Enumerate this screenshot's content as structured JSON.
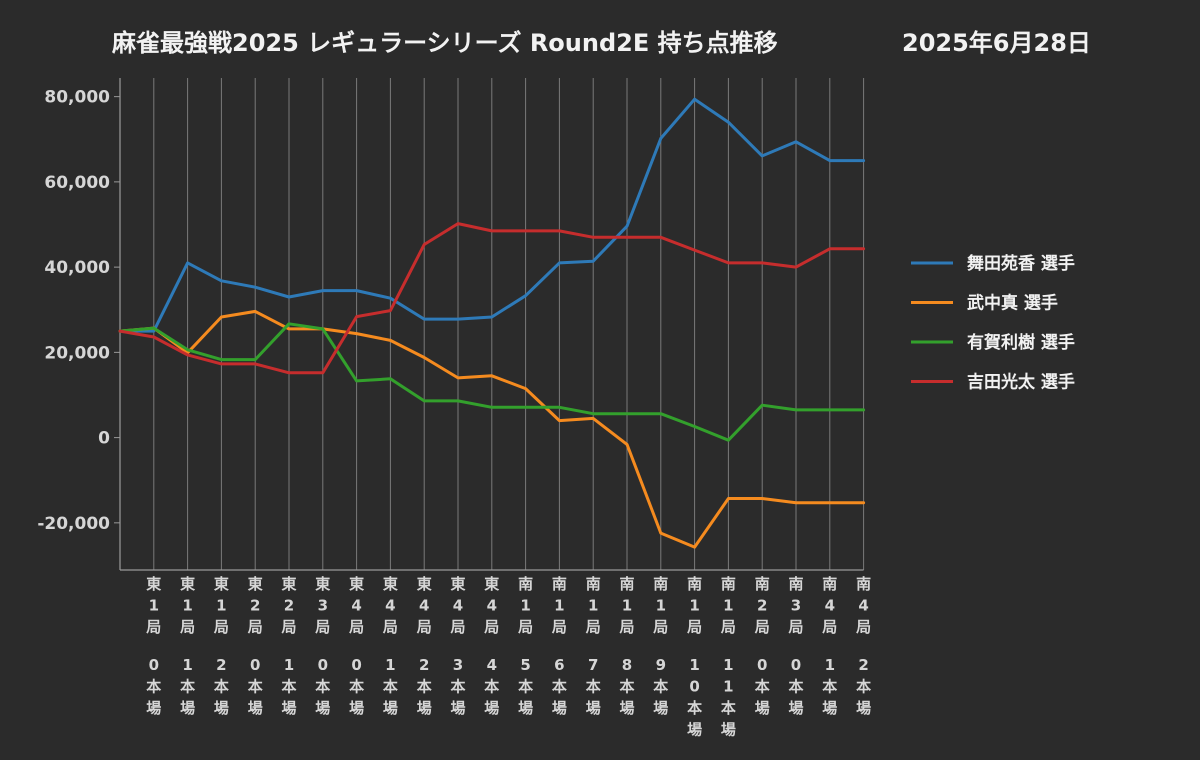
{
  "chart_data": {
    "type": "line",
    "title": "麻雀最強戦2025 レギュラーシリーズ Round2E 持ち点推移",
    "date": "2025年6月28日",
    "xlabel": "",
    "ylabel": "",
    "ylim": [
      -31000,
      85000
    ],
    "yticks": [
      80000,
      60000,
      40000,
      20000,
      0,
      -20000
    ],
    "ytick_labels": [
      "80,000",
      "60,000",
      "40,000",
      "20,000",
      "0",
      "-20,000"
    ],
    "grid": "vertical",
    "legend_position": "right",
    "categories": [
      "",
      "東1局0本場",
      "東1局1本場",
      "東1局2本場",
      "東2局0本場",
      "東2局1本場",
      "東3局0本場",
      "東4局0本場",
      "東4局1本場",
      "東4局2本場",
      "東4局3本場",
      "東4局4本場",
      "南1局5本場",
      "南1局6本場",
      "南1局7本場",
      "南1局8本場",
      "南1局9本場",
      "南1局10本場",
      "南1局11本場",
      "南2局0本場",
      "南3局0本場",
      "南4局1本場",
      "南4局2本場"
    ],
    "tick_labels": [
      {
        "top": "東1局",
        "bottom": "0本場"
      },
      {
        "top": "東1局",
        "bottom": "1本場"
      },
      {
        "top": "東1局",
        "bottom": "2本場"
      },
      {
        "top": "東2局",
        "bottom": "0本場"
      },
      {
        "top": "東2局",
        "bottom": "1本場"
      },
      {
        "top": "東3局",
        "bottom": "0本場"
      },
      {
        "top": "東4局",
        "bottom": "0本場"
      },
      {
        "top": "東4局",
        "bottom": "1本場"
      },
      {
        "top": "東4局",
        "bottom": "2本場"
      },
      {
        "top": "東4局",
        "bottom": "3本場"
      },
      {
        "top": "東4局",
        "bottom": "4本場"
      },
      {
        "top": "南1局",
        "bottom": "5本場"
      },
      {
        "top": "南1局",
        "bottom": "6本場"
      },
      {
        "top": "南1局",
        "bottom": "7本場"
      },
      {
        "top": "南1局",
        "bottom": "8本場"
      },
      {
        "top": "南1局",
        "bottom": "9本場"
      },
      {
        "top": "南1局",
        "bottom": "10本場"
      },
      {
        "top": "南1局",
        "bottom": "11本場"
      },
      {
        "top": "南2局",
        "bottom": "0本場"
      },
      {
        "top": "南3局",
        "bottom": "0本場"
      },
      {
        "top": "南4局",
        "bottom": "1本場"
      },
      {
        "top": "南4局",
        "bottom": "2本場"
      }
    ],
    "series": [
      {
        "name": "舞田苑香 選手",
        "color": "#2e7ab8",
        "values": [
          25000,
          25000,
          41000,
          36800,
          35300,
          33000,
          34500,
          34500,
          32700,
          27800,
          27800,
          28300,
          33300,
          41000,
          41400,
          49600,
          70200,
          79400,
          74000,
          66100,
          69400,
          65000,
          65000
        ]
      },
      {
        "name": "武中真 選手",
        "color": "#f58b1f",
        "values": [
          25000,
          25700,
          19900,
          28300,
          29600,
          25500,
          25500,
          24400,
          22800,
          18800,
          14000,
          14500,
          11500,
          4000,
          4500,
          -1600,
          -22400,
          -25700,
          -14300,
          -14300,
          -15300,
          -15300,
          -15300
        ]
      },
      {
        "name": "有賀利樹 選手",
        "color": "#33a02c",
        "values": [
          25000,
          25700,
          20600,
          18300,
          18300,
          26700,
          25500,
          13300,
          13800,
          8600,
          8600,
          7100,
          7100,
          7100,
          5600,
          5600,
          5600,
          2600,
          -600,
          7600,
          6500,
          6500,
          6500
        ]
      },
      {
        "name": "吉田光太 選手",
        "color": "#c62d2d",
        "values": [
          25000,
          23600,
          19400,
          17300,
          17300,
          15200,
          15200,
          28400,
          29800,
          45300,
          50200,
          48500,
          48500,
          48500,
          47000,
          47000,
          47000,
          44000,
          41000,
          41000,
          40000,
          44300,
          44300
        ]
      }
    ]
  }
}
